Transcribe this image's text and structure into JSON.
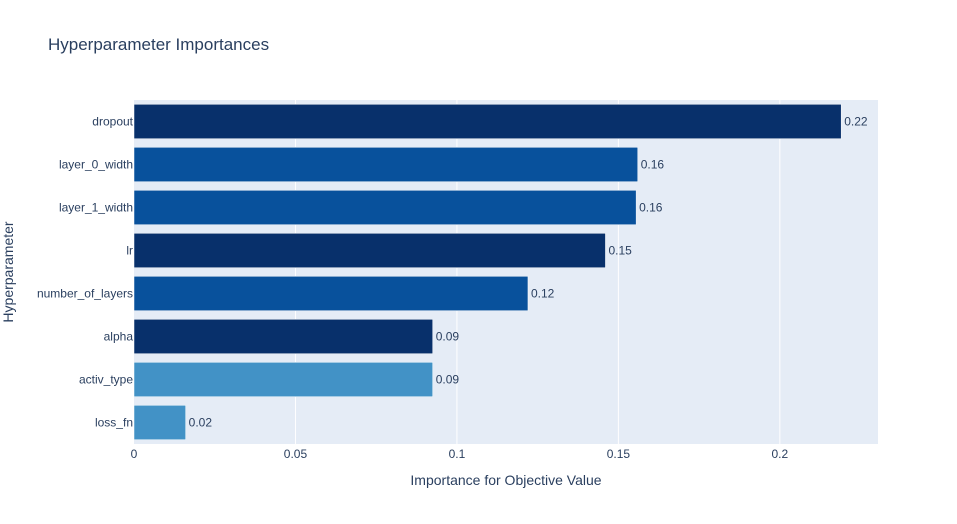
{
  "chart_data": {
    "type": "bar",
    "orientation": "horizontal",
    "title": "Hyperparameter Importances",
    "xlabel": "Importance for Objective Value",
    "ylabel": "Hyperparameter",
    "xlim": [
      0,
      0.2304
    ],
    "xticks": [
      0,
      0.05,
      0.1,
      0.15,
      0.2
    ],
    "xtick_labels": [
      "0",
      "0.05",
      "0.1",
      "0.15",
      "0.2"
    ],
    "grid": true,
    "categories": [
      "dropout",
      "layer_0_width",
      "layer_1_width",
      "lr",
      "number_of_layers",
      "alpha",
      "activ_type",
      "loss_fn"
    ],
    "values": [
      0.219,
      0.156,
      0.1555,
      0.146,
      0.122,
      0.0925,
      0.0925,
      0.016
    ],
    "value_labels": [
      "0.22",
      "0.16",
      "0.16",
      "0.15",
      "0.12",
      "0.09",
      "0.09",
      "0.02"
    ],
    "bar_colors": [
      "#08306b",
      "#08519c",
      "#08519c",
      "#08306b",
      "#08519c",
      "#08306b",
      "#4292c6",
      "#4292c6"
    ],
    "plot_background": "#e5ecf6"
  }
}
